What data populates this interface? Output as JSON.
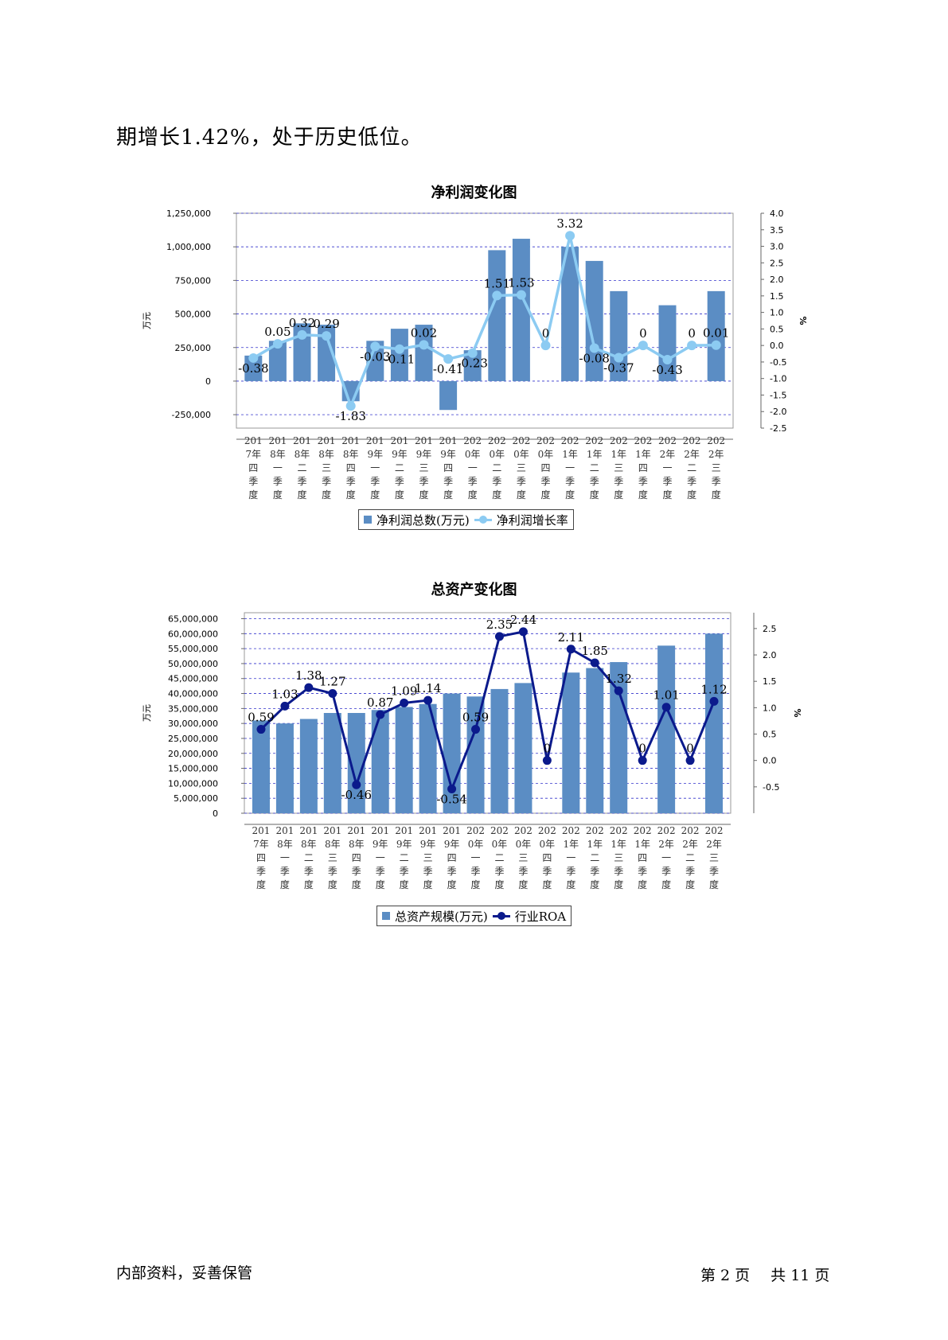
{
  "intro_text": "期增长1.42%，处于历史低位。",
  "footer": {
    "left": "内部资料，妥善保管",
    "page_prefix": "第",
    "page_num": "2",
    "page_mid": "页",
    "total_prefix": "共",
    "total_num": "11",
    "page_suffix": "页"
  },
  "colors": {
    "bar": "#5B8DC4",
    "profit_line": "#8CCBF2",
    "roa_line": "#0B1A8C",
    "grid": "#3333CC"
  },
  "categories": [
    "2017年四季度",
    "2018年一季度",
    "2018年二季度",
    "2018年三季度",
    "2018年四季度",
    "2019年一季度",
    "2019年二季度",
    "2019年三季度",
    "2019年四季度",
    "2020年一季度",
    "2020年二季度",
    "2020年三季度",
    "2020年四季度",
    "2021年一季度",
    "2021年二季度",
    "2021年三季度",
    "2021年四季度",
    "2022年一季度",
    "2022年二季度",
    "2022年三季度"
  ],
  "chart_data": [
    {
      "type": "bar",
      "title": "净利润变化图",
      "ylabel": "万元",
      "y2label": "%",
      "ylim": [
        -350000,
        1250000
      ],
      "y_ticks": [
        -250000,
        0,
        250000,
        500000,
        750000,
        1000000,
        1250000
      ],
      "y_tick_labels": [
        "-250,000",
        "0",
        "250,000",
        "500,000",
        "750,000",
        "1,000,000",
        "1,250,000"
      ],
      "y2lim": [
        -2.5,
        4.0
      ],
      "y2_ticks": [
        -2.5,
        -2.0,
        -1.5,
        -1.0,
        -0.5,
        0.0,
        0.5,
        1.0,
        1.5,
        2.0,
        2.5,
        3.0,
        3.5,
        4.0
      ],
      "y2_tick_labels": [
        "-2.5",
        "-2.0",
        "-1.5",
        "-1.0",
        "-0.5",
        "0.0",
        "0.5",
        "1.0",
        "1.5",
        "2.0",
        "2.5",
        "3.0",
        "3.5",
        "4.0"
      ],
      "grid": true,
      "legend_position": "bottom",
      "series": [
        {
          "name": "净利润总数(万元)",
          "kind": "bar",
          "values": [
            190000,
            300000,
            430000,
            420000,
            -150000,
            300000,
            390000,
            420000,
            -215000,
            230000,
            975000,
            1060000,
            null,
            1000000,
            895000,
            670000,
            null,
            565000,
            null,
            670000
          ]
        },
        {
          "name": "净利润增长率",
          "kind": "line",
          "axis": "right",
          "values": [
            -0.38,
            0.05,
            0.32,
            0.29,
            -1.83,
            -0.03,
            -0.11,
            0.02,
            -0.41,
            -0.23,
            1.51,
            1.53,
            0,
            3.32,
            -0.08,
            -0.37,
            0,
            -0.43,
            0,
            0.01
          ],
          "labels": [
            "-0.38",
            "0.05",
            "0.32",
            "0.29",
            "-1.83",
            "-0.03",
            "-0.11",
            "0.02",
            "-0.41",
            "-0.23",
            "1.51",
            "1.53",
            "0",
            "3.32",
            "-0.08",
            "-0.37",
            "0",
            "-0.43",
            "0",
            "0.01"
          ]
        }
      ]
    },
    {
      "type": "bar",
      "title": "总资产变化图",
      "ylabel": "万元",
      "y2label": "%",
      "ylim": [
        0,
        67000000
      ],
      "y_ticks": [
        0,
        5000000,
        10000000,
        15000000,
        20000000,
        25000000,
        30000000,
        35000000,
        40000000,
        45000000,
        50000000,
        55000000,
        60000000,
        65000000
      ],
      "y_tick_labels": [
        "0",
        "5,000,000",
        "10,000,000",
        "15,000,000",
        "20,000,000",
        "25,000,000",
        "30,000,000",
        "35,000,000",
        "40,000,000",
        "45,000,000",
        "50,000,000",
        "55,000,000",
        "60,000,000",
        "65,000,000"
      ],
      "y2lim": [
        -1.0,
        2.8
      ],
      "y2_ticks": [
        -0.5,
        0.0,
        0.5,
        1.0,
        1.5,
        2.0,
        2.5
      ],
      "y2_tick_labels": [
        "-0.5",
        "0.0",
        "0.5",
        "1.0",
        "1.5",
        "2.0",
        "2.5"
      ],
      "grid": true,
      "legend_position": "bottom",
      "series": [
        {
          "name": "总资产规模(万元)",
          "kind": "bar",
          "values": [
            31000000,
            30000000,
            31500000,
            33500000,
            33500000,
            34500000,
            35500000,
            36500000,
            40000000,
            39000000,
            41500000,
            43500000,
            null,
            47000000,
            48500000,
            50500000,
            null,
            56000000,
            null,
            60000000
          ]
        },
        {
          "name": "行业ROA",
          "kind": "line",
          "axis": "right",
          "values": [
            0.59,
            1.03,
            1.38,
            1.27,
            -0.46,
            0.87,
            1.09,
            1.14,
            -0.54,
            0.59,
            2.35,
            2.44,
            0,
            2.11,
            1.85,
            1.32,
            0,
            1.01,
            0,
            1.12
          ],
          "labels": [
            "0.59",
            "1.03",
            "1.38",
            "1.27",
            "-0.46",
            "0.87",
            "1.09",
            "1.14",
            "-0.54",
            "0.59",
            "2.35",
            "2.44",
            "0",
            "2.11",
            "1.85",
            "1.32",
            "0",
            "1.01",
            "0",
            "1.12"
          ]
        }
      ]
    }
  ]
}
